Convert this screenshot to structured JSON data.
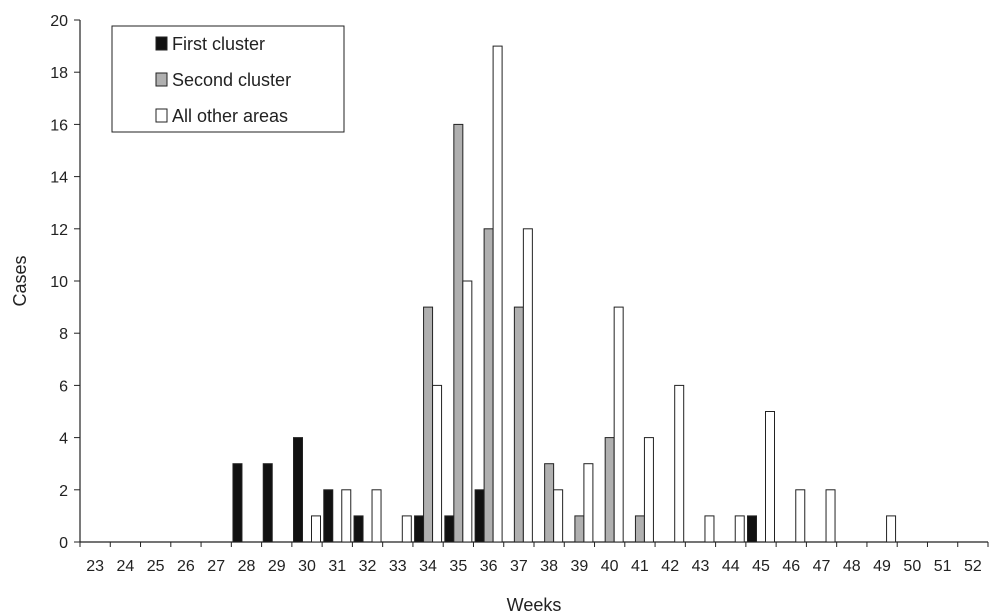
{
  "chart_data": {
    "type": "bar",
    "title": "",
    "xlabel": "Weeks",
    "ylabel": "Cases",
    "ylim": [
      0,
      20
    ],
    "yticks": [
      0,
      2,
      4,
      6,
      8,
      10,
      12,
      14,
      16,
      18,
      20
    ],
    "categories": [
      "23",
      "24",
      "25",
      "26",
      "27",
      "28",
      "29",
      "30",
      "31",
      "32",
      "33",
      "34",
      "35",
      "36",
      "37",
      "38",
      "39",
      "40",
      "41",
      "42",
      "43",
      "44",
      "45",
      "46",
      "47",
      "48",
      "49",
      "50",
      "51",
      "52"
    ],
    "series": [
      {
        "name": "First cluster",
        "color": "#111111",
        "values": [
          0,
          0,
          0,
          0,
          0,
          3,
          3,
          4,
          2,
          1,
          0,
          1,
          1,
          2,
          0,
          0,
          0,
          0,
          0,
          0,
          0,
          0,
          1,
          0,
          0,
          0,
          0,
          0,
          0,
          0
        ]
      },
      {
        "name": "Second cluster",
        "color": "#b0b0b0",
        "values": [
          0,
          0,
          0,
          0,
          0,
          0,
          0,
          0,
          0,
          0,
          0,
          9,
          16,
          12,
          9,
          3,
          1,
          4,
          1,
          0,
          0,
          0,
          0,
          0,
          0,
          0,
          0,
          0,
          0,
          0
        ]
      },
      {
        "name": "All other areas",
        "color": "#ffffff",
        "values": [
          0,
          0,
          0,
          0,
          0,
          0,
          0,
          1,
          2,
          2,
          1,
          6,
          10,
          19,
          12,
          2,
          3,
          9,
          4,
          6,
          1,
          1,
          5,
          2,
          2,
          0,
          1,
          0,
          0,
          0
        ]
      }
    ],
    "legend": "top-left",
    "grid": false
  }
}
